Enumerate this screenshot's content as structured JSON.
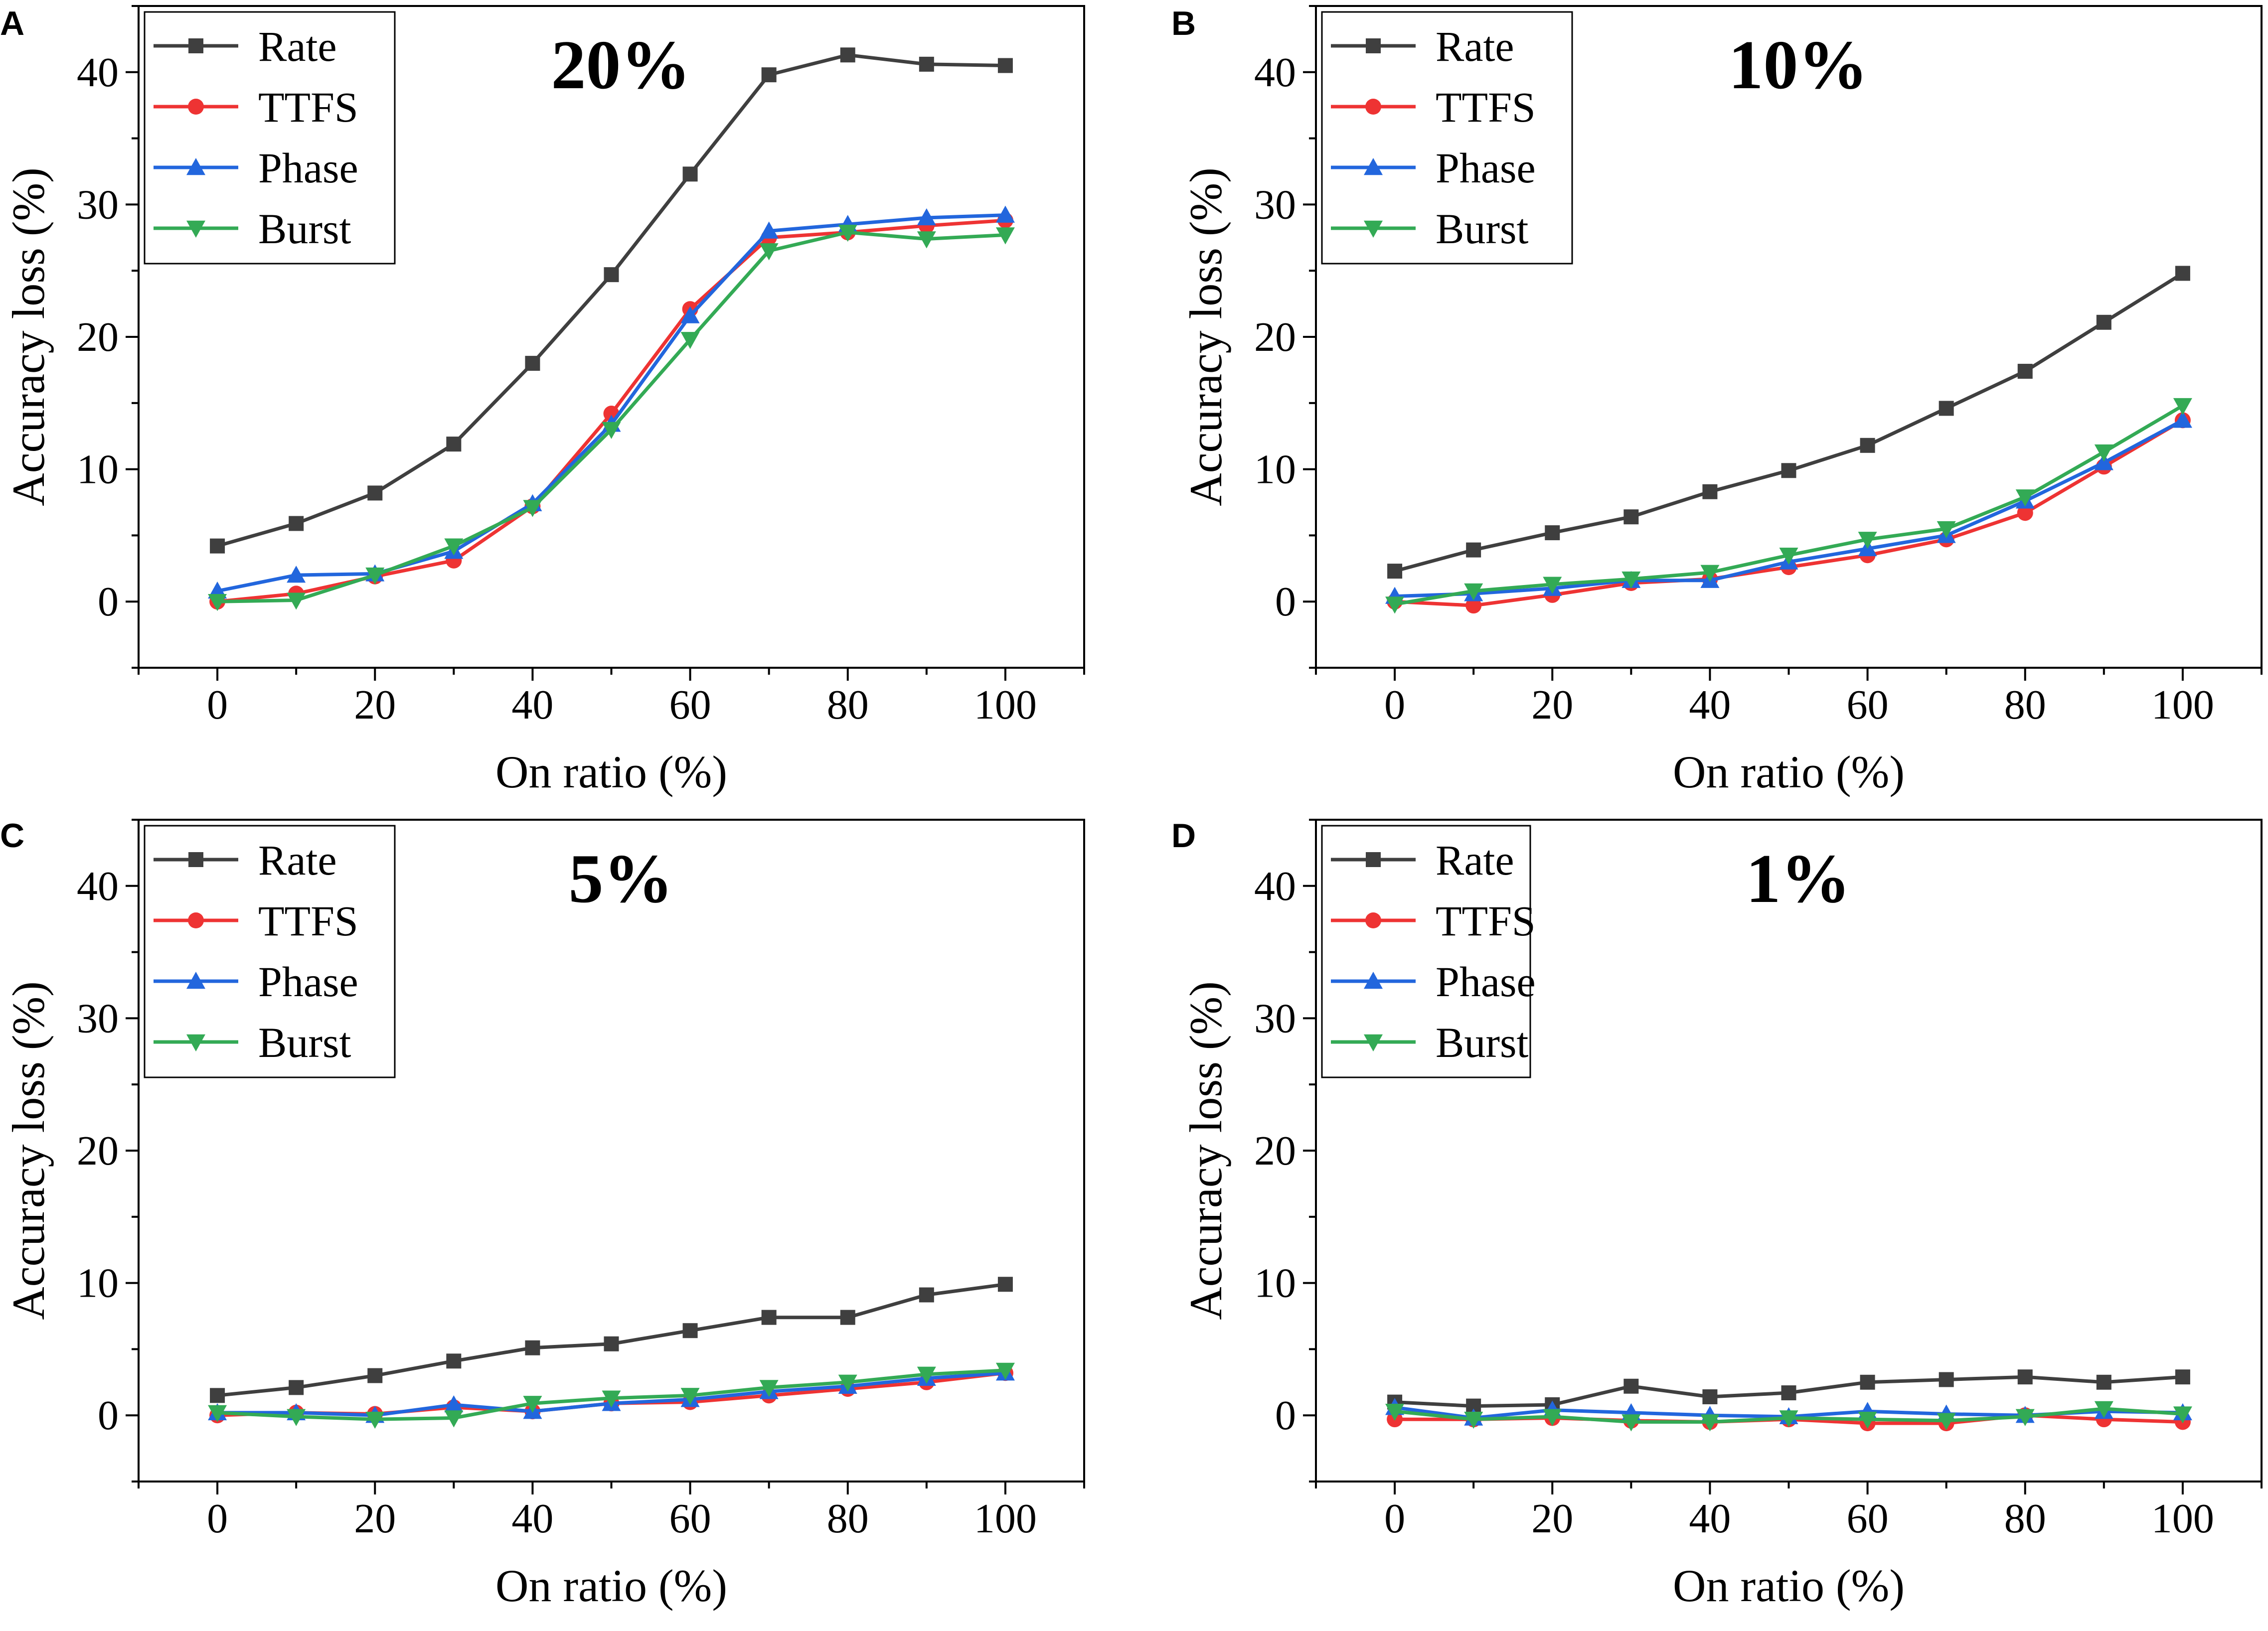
{
  "figure": {
    "legend_series_order": [
      "Rate",
      "TTFS",
      "Phase",
      "Burst"
    ]
  },
  "chart_data": [
    {
      "type": "line",
      "panel": "A",
      "title": "20%",
      "xlabel": "On ratio (%)",
      "ylabel": "Accuracy loss (%)",
      "xlim": [
        -10,
        110
      ],
      "ylim": [
        -5,
        45
      ],
      "xticks": [
        0,
        20,
        40,
        60,
        80,
        100
      ],
      "yticks": [
        0,
        10,
        20,
        30,
        40
      ],
      "legend_position": "top-left",
      "grid": false,
      "x": [
        0,
        10,
        20,
        30,
        40,
        50,
        60,
        70,
        80,
        90,
        100
      ],
      "series": [
        {
          "name": "Rate",
          "color": "#3f3f3f",
          "marker": "square",
          "values": [
            4.2,
            5.9,
            8.2,
            11.9,
            18.0,
            24.7,
            32.3,
            39.8,
            41.3,
            40.6,
            40.5
          ]
        },
        {
          "name": "TTFS",
          "color": "#ee3333",
          "marker": "circle",
          "values": [
            0.0,
            0.6,
            1.9,
            3.1,
            7.2,
            14.2,
            22.1,
            27.5,
            27.9,
            28.4,
            28.8
          ]
        },
        {
          "name": "Phase",
          "color": "#2266dd",
          "marker": "triangle-up",
          "values": [
            0.8,
            2.0,
            2.1,
            3.8,
            7.4,
            13.4,
            21.6,
            28.0,
            28.5,
            29.0,
            29.2
          ]
        },
        {
          "name": "Burst",
          "color": "#33aa55",
          "marker": "triangle-down",
          "values": [
            0.0,
            0.1,
            2.0,
            4.2,
            7.1,
            13.0,
            19.8,
            26.5,
            27.9,
            27.4,
            27.7
          ]
        }
      ]
    },
    {
      "type": "line",
      "panel": "B",
      "title": "10%",
      "xlabel": "On ratio (%)",
      "ylabel": "Accuracy loss (%)",
      "xlim": [
        -10,
        110
      ],
      "ylim": [
        -5,
        45
      ],
      "xticks": [
        0,
        20,
        40,
        60,
        80,
        100
      ],
      "yticks": [
        0,
        10,
        20,
        30,
        40
      ],
      "legend_position": "top-left",
      "grid": false,
      "x": [
        0,
        10,
        20,
        30,
        40,
        50,
        60,
        70,
        80,
        90,
        100
      ],
      "series": [
        {
          "name": "Rate",
          "color": "#3f3f3f",
          "marker": "square",
          "values": [
            2.3,
            3.9,
            5.2,
            6.4,
            8.3,
            9.9,
            11.8,
            14.6,
            17.4,
            21.1,
            24.8
          ]
        },
        {
          "name": "TTFS",
          "color": "#ee3333",
          "marker": "circle",
          "values": [
            0.0,
            -0.3,
            0.5,
            1.4,
            1.7,
            2.6,
            3.5,
            4.7,
            6.7,
            10.2,
            13.7
          ]
        },
        {
          "name": "Phase",
          "color": "#2266dd",
          "marker": "triangle-up",
          "values": [
            0.4,
            0.6,
            1.0,
            1.6,
            1.6,
            3.0,
            4.0,
            5.0,
            7.6,
            10.5,
            13.7
          ]
        },
        {
          "name": "Burst",
          "color": "#33aa55",
          "marker": "triangle-down",
          "values": [
            -0.2,
            0.8,
            1.3,
            1.7,
            2.2,
            3.5,
            4.7,
            5.5,
            7.9,
            11.3,
            14.8
          ]
        }
      ]
    },
    {
      "type": "line",
      "panel": "C",
      "title": "5%",
      "xlabel": "On ratio (%)",
      "ylabel": "Accuracy loss (%)",
      "xlim": [
        -10,
        110
      ],
      "ylim": [
        -5,
        45
      ],
      "xticks": [
        0,
        20,
        40,
        60,
        80,
        100
      ],
      "yticks": [
        0,
        10,
        20,
        30,
        40
      ],
      "legend_position": "top-left",
      "grid": false,
      "x": [
        0,
        10,
        20,
        30,
        40,
        50,
        60,
        70,
        80,
        90,
        100
      ],
      "series": [
        {
          "name": "Rate",
          "color": "#3f3f3f",
          "marker": "square",
          "values": [
            1.5,
            2.1,
            3.0,
            4.1,
            5.1,
            5.4,
            6.4,
            7.4,
            7.4,
            9.1,
            9.9
          ]
        },
        {
          "name": "TTFS",
          "color": "#ee3333",
          "marker": "circle",
          "values": [
            0.0,
            0.2,
            0.1,
            0.6,
            0.3,
            0.9,
            1.0,
            1.5,
            2.0,
            2.5,
            3.2
          ]
        },
        {
          "name": "Phase",
          "color": "#2266dd",
          "marker": "triangle-up",
          "values": [
            0.2,
            0.2,
            0.0,
            0.8,
            0.3,
            0.9,
            1.2,
            1.8,
            2.2,
            2.8,
            3.2
          ]
        },
        {
          "name": "Burst",
          "color": "#33aa55",
          "marker": "triangle-down",
          "values": [
            0.2,
            -0.1,
            -0.3,
            -0.2,
            0.9,
            1.3,
            1.5,
            2.1,
            2.5,
            3.1,
            3.4
          ]
        }
      ]
    },
    {
      "type": "line",
      "panel": "D",
      "title": "1%",
      "xlabel": "On ratio (%)",
      "ylabel": "Accuracy loss (%)",
      "xlim": [
        -10,
        110
      ],
      "ylim": [
        -5,
        45
      ],
      "xticks": [
        0,
        20,
        40,
        60,
        80,
        100
      ],
      "yticks": [
        0,
        10,
        20,
        30,
        40
      ],
      "legend_position": "top-left",
      "grid": false,
      "x": [
        0,
        10,
        20,
        30,
        40,
        50,
        60,
        70,
        80,
        90,
        100
      ],
      "series": [
        {
          "name": "Rate",
          "color": "#3f3f3f",
          "marker": "square",
          "values": [
            1.0,
            0.7,
            0.8,
            2.2,
            1.4,
            1.7,
            2.5,
            2.7,
            2.9,
            2.5,
            2.9
          ]
        },
        {
          "name": "TTFS",
          "color": "#ee3333",
          "marker": "circle",
          "values": [
            -0.3,
            -0.3,
            -0.2,
            -0.4,
            -0.5,
            -0.3,
            -0.6,
            -0.6,
            0.0,
            -0.3,
            -0.5
          ]
        },
        {
          "name": "Phase",
          "color": "#2266dd",
          "marker": "triangle-up",
          "values": [
            0.6,
            -0.2,
            0.4,
            0.2,
            0.0,
            -0.1,
            0.3,
            0.1,
            0.0,
            0.3,
            0.2
          ]
        },
        {
          "name": "Burst",
          "color": "#33aa55",
          "marker": "triangle-down",
          "values": [
            0.3,
            -0.3,
            -0.1,
            -0.5,
            -0.5,
            -0.2,
            -0.3,
            -0.4,
            -0.1,
            0.5,
            0.1
          ]
        }
      ]
    }
  ]
}
